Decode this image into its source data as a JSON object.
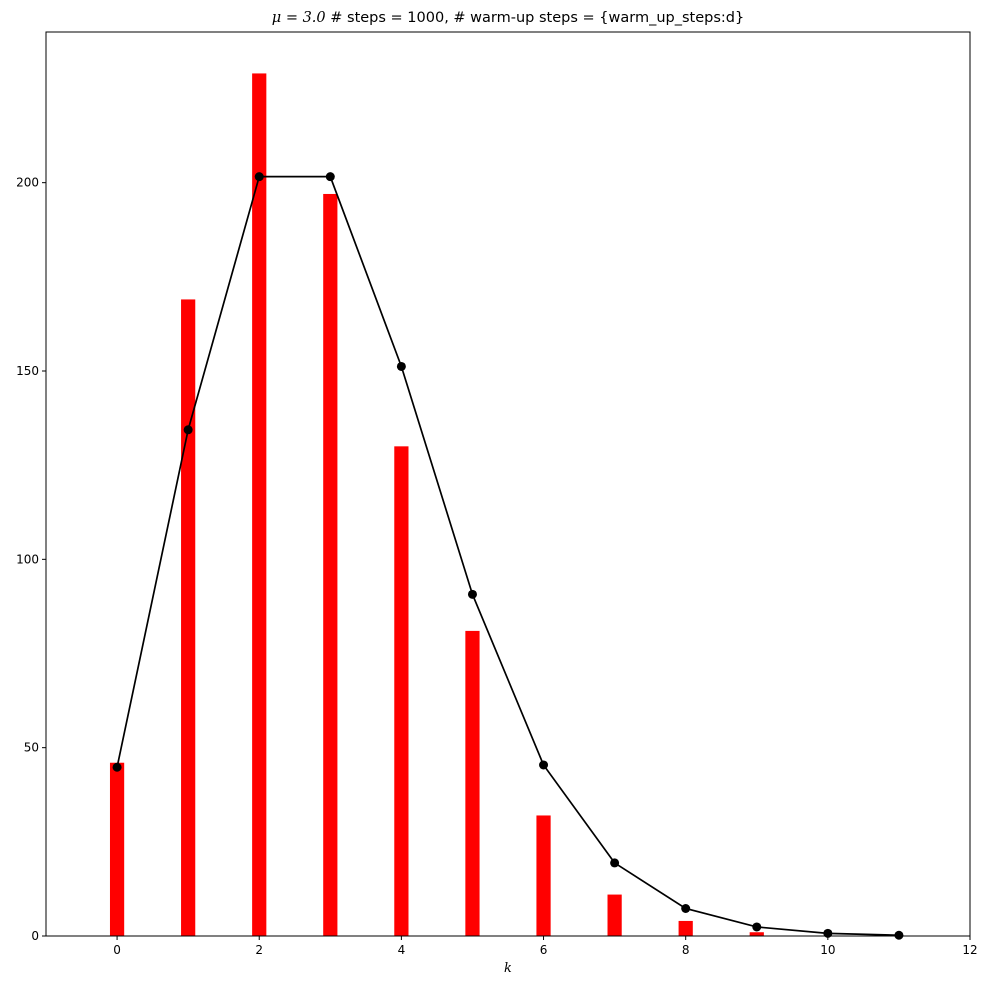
{
  "chart_data": {
    "type": "bar",
    "title_mu": "μ = 3.0",
    "title_rest": " # steps = 1000, # warm-up steps = {warm_up_steps:d}",
    "xlabel": "k",
    "ylabel": "",
    "xlim": [
      -1,
      12
    ],
    "ylim": [
      0,
      240
    ],
    "xticks": [
      0,
      2,
      4,
      6,
      8,
      10,
      12
    ],
    "yticks": [
      0,
      50,
      100,
      150,
      200
    ],
    "grid": false,
    "series": [
      {
        "kind": "bar",
        "color": "#ff0000",
        "x": [
          0,
          1,
          2,
          3,
          4,
          5,
          6,
          7,
          8,
          9
        ],
        "values": [
          46,
          169,
          229,
          197,
          130,
          81,
          32,
          11,
          4,
          1
        ]
      },
      {
        "kind": "line",
        "color": "#000000",
        "marker": "circle",
        "x": [
          0,
          1,
          2,
          3,
          4,
          5,
          6,
          7,
          8,
          9,
          10,
          11
        ],
        "values": [
          44.8,
          134.4,
          201.6,
          201.6,
          151.2,
          90.7,
          45.4,
          19.4,
          7.3,
          2.4,
          0.7,
          0.2
        ]
      }
    ]
  }
}
